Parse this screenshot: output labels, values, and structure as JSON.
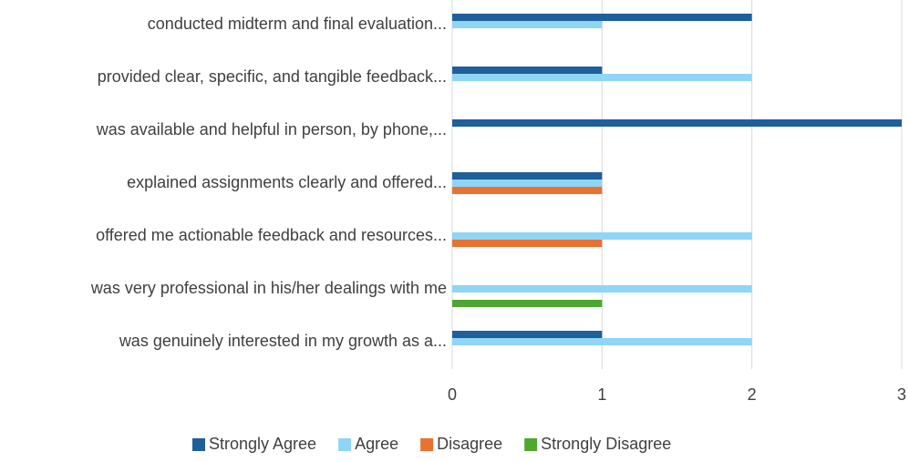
{
  "chart_data": {
    "type": "hbar",
    "categories": [
      "conducted midterm and final evaluation...",
      "provided clear, specific, and tangible feedback...",
      "was available and helpful in person, by phone,...",
      "explained assignments clearly and offered...",
      "offered me actionable feedback and resources...",
      "was very professional in his/her dealings with me",
      "was genuinely interested in my growth as a..."
    ],
    "series": [
      {
        "name": "Strongly Agree",
        "color": "#1f5f9a",
        "values": [
          2,
          1,
          3,
          1,
          0,
          0,
          1
        ]
      },
      {
        "name": "Agree",
        "color": "#8fd5f5",
        "values": [
          1,
          2,
          0,
          1,
          2,
          2,
          2
        ]
      },
      {
        "name": "Disagree",
        "color": "#e97132",
        "values": [
          0,
          0,
          0,
          1,
          1,
          0,
          0
        ]
      },
      {
        "name": "Strongly Disagree",
        "color": "#4ea72e",
        "values": [
          0,
          0,
          0,
          0,
          0,
          1,
          0
        ]
      }
    ],
    "xlim": [
      0,
      3
    ],
    "xticks": [
      0,
      1,
      2,
      3
    ],
    "grid": true,
    "legend": "bottom"
  }
}
